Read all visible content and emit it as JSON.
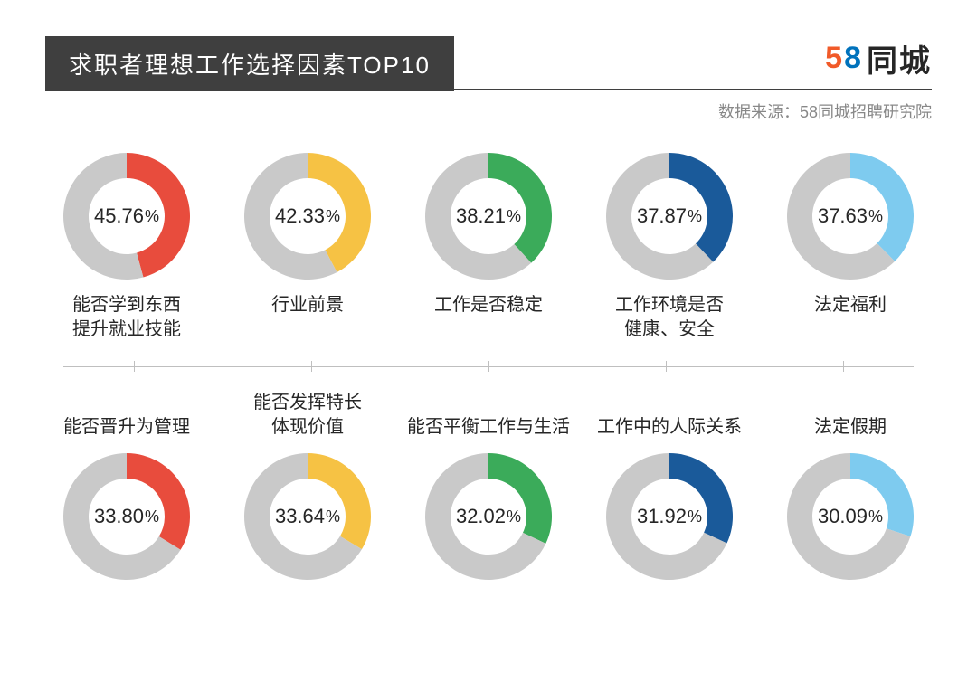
{
  "header": {
    "title": "求职者理想工作选择因素TOP10",
    "title_bg": "#3f3f3f",
    "title_color": "#ffffff",
    "title_fontsize": 26,
    "source": "数据来源：58同城招聘研究院",
    "source_color": "#888888",
    "source_fontsize": 18,
    "logo": {
      "digit1": "5",
      "digit2": "8",
      "cn": "同城",
      "digit1_color": "#f15a29",
      "digit2_color": "#0072bc",
      "cn_color": "#262626",
      "fontsize": 34
    },
    "divider_color": "#3f3f3f"
  },
  "donut_style": {
    "outer_radius": 70,
    "thickness": 28,
    "remainder_color": "#c9c9c9",
    "background_color": "#ffffff",
    "pct_fontsize": 22,
    "pct_color": "#262626",
    "label_fontsize": 20
  },
  "axis": {
    "line_color": "#bfbfbf",
    "tick_positions_pct": [
      10,
      30,
      50,
      70,
      90
    ]
  },
  "items": [
    {
      "value": 45.76,
      "color": "#e84c3d",
      "label": "能否学到东西\n提升就业技能"
    },
    {
      "value": 42.33,
      "color": "#f6c244",
      "label": "行业前景"
    },
    {
      "value": 38.21,
      "color": "#3bab5a",
      "label": "工作是否稳定"
    },
    {
      "value": 37.87,
      "color": "#1a5a9a",
      "label": "工作环境是否\n健康、安全"
    },
    {
      "value": 37.63,
      "color": "#7ecbef",
      "label": "法定福利"
    },
    {
      "value": 33.8,
      "color": "#e84c3d",
      "label": "能否晋升为管理"
    },
    {
      "value": 33.64,
      "color": "#f6c244",
      "label": "能否发挥特长\n体现价值"
    },
    {
      "value": 32.02,
      "color": "#3bab5a",
      "label": "能否平衡工作与生活"
    },
    {
      "value": 31.92,
      "color": "#1a5a9a",
      "label": "工作中的人际关系"
    },
    {
      "value": 30.09,
      "color": "#7ecbef",
      "label": "法定假期"
    }
  ]
}
